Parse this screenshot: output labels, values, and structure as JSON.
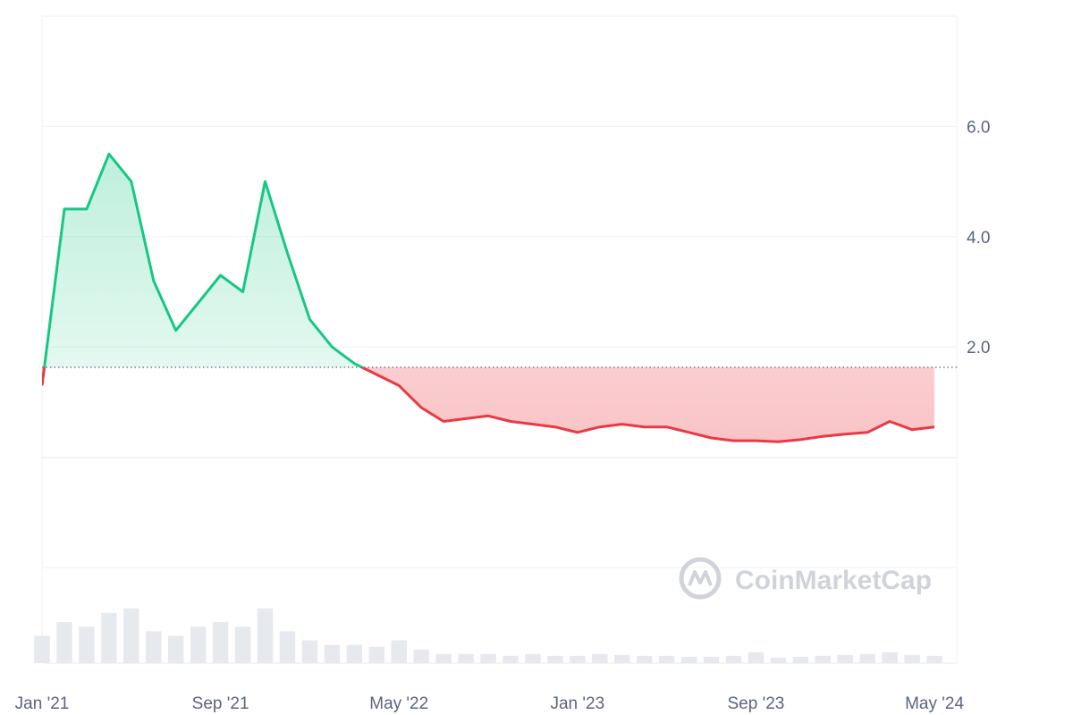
{
  "chart_data": {
    "type": "line",
    "watermark": "CoinMarketCap",
    "x": [
      "2021-01",
      "2021-02",
      "2021-03",
      "2021-04",
      "2021-05",
      "2021-06",
      "2021-07",
      "2021-08",
      "2021-09",
      "2021-10",
      "2021-11",
      "2021-12",
      "2022-01",
      "2022-02",
      "2022-03",
      "2022-04",
      "2022-05",
      "2022-06",
      "2022-07",
      "2022-08",
      "2022-09",
      "2022-10",
      "2022-11",
      "2022-12",
      "2023-01",
      "2023-02",
      "2023-03",
      "2023-04",
      "2023-05",
      "2023-06",
      "2023-07",
      "2023-08",
      "2023-09",
      "2023-10",
      "2023-11",
      "2023-12",
      "2024-01",
      "2024-02",
      "2024-03",
      "2024-04",
      "2024-05"
    ],
    "values": [
      1.3,
      4.5,
      4.5,
      5.5,
      5.0,
      3.2,
      2.3,
      2.8,
      3.3,
      3.0,
      5.0,
      3.7,
      2.5,
      2.0,
      1.7,
      1.5,
      1.3,
      0.9,
      0.65,
      0.7,
      0.75,
      0.65,
      0.6,
      0.55,
      0.45,
      0.55,
      0.6,
      0.55,
      0.55,
      0.45,
      0.35,
      0.3,
      0.3,
      0.28,
      0.32,
      0.38,
      0.42,
      0.45,
      0.65,
      0.5,
      0.55
    ],
    "volume": [
      30,
      45,
      40,
      55,
      60,
      35,
      30,
      40,
      45,
      40,
      60,
      35,
      25,
      20,
      20,
      18,
      25,
      15,
      10,
      10,
      10,
      8,
      10,
      8,
      8,
      10,
      9,
      8,
      8,
      7,
      7,
      8,
      12,
      6,
      7,
      8,
      9,
      10,
      12,
      9,
      8
    ],
    "volume_lim": [
      0,
      100
    ],
    "baseline": 1.63,
    "up_color": "#16c784",
    "down_color": "#ea3943",
    "xlim": [
      "2021-01",
      "2024-06"
    ],
    "xticks": [
      {
        "value": "2021-01",
        "label": "Jan '21"
      },
      {
        "value": "2021-09",
        "label": "Sep '21"
      },
      {
        "value": "2022-05",
        "label": "May '22"
      },
      {
        "value": "2023-01",
        "label": "Jan '23"
      },
      {
        "value": "2023-09",
        "label": "Sep '23"
      },
      {
        "value": "2024-05",
        "label": "May '24"
      }
    ],
    "ylim": [
      -2,
      8
    ],
    "yticks": [
      {
        "value": 2,
        "label": "2.0"
      },
      {
        "value": 4,
        "label": "4.0"
      },
      {
        "value": 6,
        "label": "6.0"
      }
    ],
    "grid": true
  }
}
